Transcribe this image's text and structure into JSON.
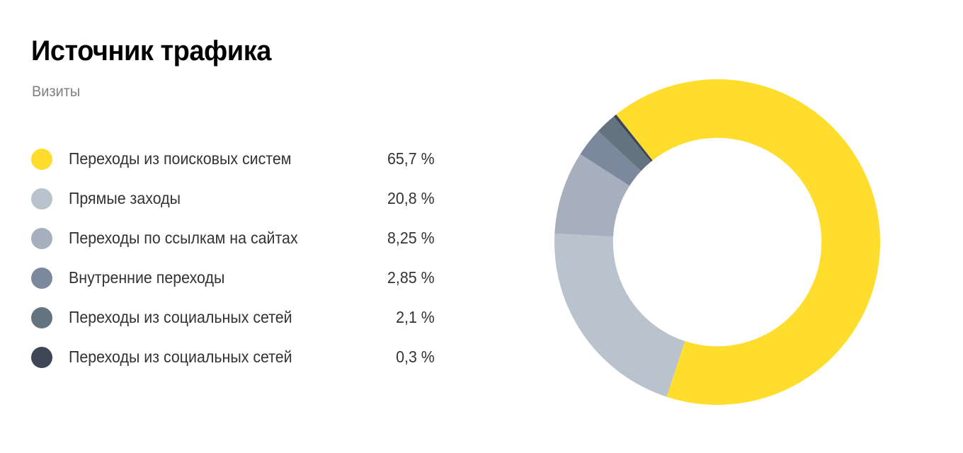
{
  "header": {
    "title": "Источник трафика",
    "subtitle": "Визиты"
  },
  "legend": [
    {
      "label": "Переходы из поисковых систем",
      "value": "65,7 %",
      "color": "#FFDD2D"
    },
    {
      "label": "Прямые заходы",
      "value": "20,8 %",
      "color": "#B9C3CD"
    },
    {
      "label": "Переходы по ссылкам на сайтах",
      "value": "8,25 %",
      "color": "#A6AFBD"
    },
    {
      "label": "Внутренние переходы",
      "value": "2,85 %",
      "color": "#7C899D"
    },
    {
      "label": "Переходы из социальных сетей",
      "value": "2,1 %",
      "color": "#637380"
    },
    {
      "label": "Переходы из социальных сетей",
      "value": "0,3 %",
      "color": "#3F4656"
    }
  ],
  "chart_data": {
    "type": "pie",
    "variant": "donut",
    "title": "Источник трафика",
    "subtitle": "Визиты",
    "categories": [
      "Переходы из поисковых систем",
      "Прямые заходы",
      "Переходы по ссылкам на сайтах",
      "Внутренние переходы",
      "Переходы из социальных сетей",
      "Переходы из социальных сетей"
    ],
    "values": [
      65.7,
      20.8,
      8.25,
      2.85,
      2.1,
      0.3
    ],
    "colors": [
      "#FFDD2D",
      "#B9C3CD",
      "#A6AFBD",
      "#7C899D",
      "#637380",
      "#3F4656"
    ],
    "unit": "%",
    "start_angle_deg": 321.6,
    "direction": "clockwise",
    "inner_radius_ratio": 0.64,
    "legend_position": "left"
  }
}
